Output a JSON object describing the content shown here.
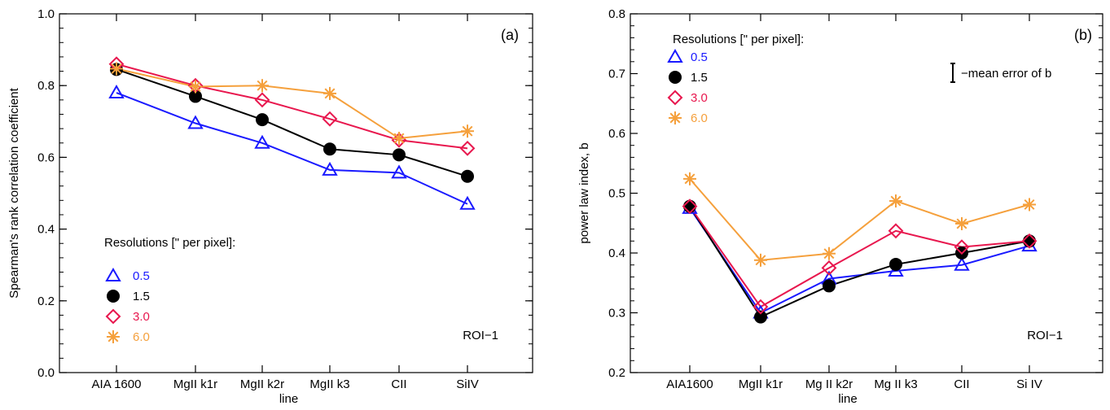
{
  "chart_data": [
    {
      "type": "line",
      "panel_label": "(a)",
      "annotation": "ROI−1",
      "xlabel": "line",
      "ylabel": "Spearman's rank correlation coefficient",
      "categories": [
        "AIA 1600",
        "MgII k1r",
        "MgII k2r",
        "MgII k3",
        "CII",
        "SiIV"
      ],
      "ylim": [
        0.0,
        1.0
      ],
      "yticks": [
        "0.0",
        "0.2",
        "0.4",
        "0.6",
        "0.8",
        "1.0"
      ],
      "legend_title": "Resolutions [\" per pixel]:",
      "legend_position": "lower-left",
      "series": [
        {
          "name": "0.5",
          "color": "#1a1aff",
          "marker": "triangle",
          "values": [
            0.78,
            0.695,
            0.64,
            0.565,
            0.557,
            0.47
          ]
        },
        {
          "name": "1.5",
          "color": "#000000",
          "marker": "filled-circle",
          "values": [
            0.845,
            0.77,
            0.705,
            0.623,
            0.607,
            0.547
          ]
        },
        {
          "name": "3.0",
          "color": "#e8174e",
          "marker": "diamond",
          "values": [
            0.86,
            0.8,
            0.76,
            0.707,
            0.648,
            0.625
          ]
        },
        {
          "name": "6.0",
          "color": "#f5a03c",
          "marker": "asterisk",
          "values": [
            0.847,
            0.797,
            0.8,
            0.778,
            0.653,
            0.673
          ]
        }
      ]
    },
    {
      "type": "line",
      "panel_label": "(b)",
      "annotation": "ROI−1",
      "xlabel": "line",
      "ylabel": "power law index, b",
      "categories": [
        "AIA1600",
        "MgII k1r",
        "Mg II k2r",
        "Mg II k3",
        "CII",
        "Si IV"
      ],
      "ylim": [
        0.2,
        0.8
      ],
      "yticks": [
        "0.2",
        "0.3",
        "0.4",
        "0.5",
        "0.6",
        "0.7",
        "0.8"
      ],
      "legend_title": "Resolutions [\" per pixel]:",
      "legend_position": "top-left",
      "error_legend": "−mean error of b",
      "series": [
        {
          "name": "0.5",
          "color": "#1a1aff",
          "marker": "triangle",
          "values": [
            0.475,
            0.3,
            0.357,
            0.37,
            0.38,
            0.412
          ]
        },
        {
          "name": "1.5",
          "color": "#000000",
          "marker": "filled-circle",
          "values": [
            0.478,
            0.293,
            0.345,
            0.381,
            0.4,
            0.42
          ]
        },
        {
          "name": "3.0",
          "color": "#e8174e",
          "marker": "diamond",
          "values": [
            0.478,
            0.31,
            0.375,
            0.437,
            0.41,
            0.42
          ]
        },
        {
          "name": "6.0",
          "color": "#f5a03c",
          "marker": "asterisk",
          "values": [
            0.524,
            0.388,
            0.399,
            0.487,
            0.449,
            0.481
          ]
        }
      ]
    }
  ]
}
